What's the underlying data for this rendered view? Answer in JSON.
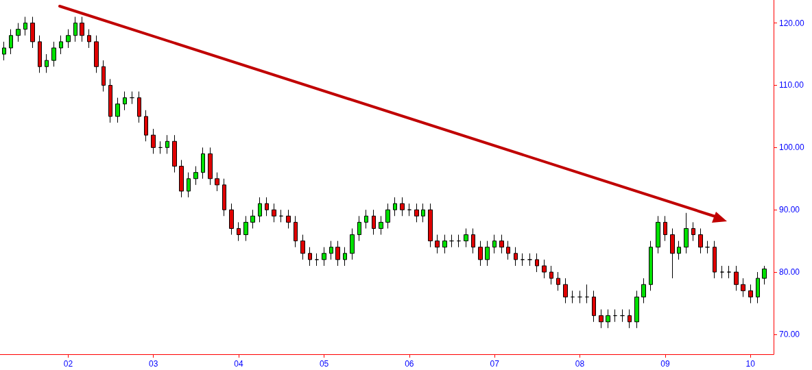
{
  "chart_data": {
    "type": "candlestick",
    "x": [
      "2001-04",
      "2001-05",
      "2001-06",
      "2001-07",
      "2001-08",
      "2001-09",
      "2001-10",
      "2001-11",
      "2001-12",
      "2002-01",
      "2002-02",
      "2002-03",
      "2002-04",
      "2002-05",
      "2002-06",
      "2002-07",
      "2002-08",
      "2002-09",
      "2002-10",
      "2002-11",
      "2002-12",
      "2003-01",
      "2003-02",
      "2003-03",
      "2003-04",
      "2003-05",
      "2003-06",
      "2003-07",
      "2003-08",
      "2003-09",
      "2003-10",
      "2003-11",
      "2003-12",
      "2004-01",
      "2004-02",
      "2004-03",
      "2004-04",
      "2004-05",
      "2004-06",
      "2004-07",
      "2004-08",
      "2004-09",
      "2004-10",
      "2004-11",
      "2004-12",
      "2005-01",
      "2005-02",
      "2005-03",
      "2005-04",
      "2005-05",
      "2005-06",
      "2005-07",
      "2005-08",
      "2005-09",
      "2005-10",
      "2005-11",
      "2005-12",
      "2006-01",
      "2006-02",
      "2006-03",
      "2006-04",
      "2006-05",
      "2006-06",
      "2006-07",
      "2006-08",
      "2006-09",
      "2006-10",
      "2006-11",
      "2006-12",
      "2007-01",
      "2007-02",
      "2007-03",
      "2007-04",
      "2007-05",
      "2007-06",
      "2007-07",
      "2007-08",
      "2007-09",
      "2007-10",
      "2007-11",
      "2007-12",
      "2008-01",
      "2008-02",
      "2008-03",
      "2008-04",
      "2008-05",
      "2008-06",
      "2008-07",
      "2008-08",
      "2008-09",
      "2008-10",
      "2008-11",
      "2008-12",
      "2009-01",
      "2009-02",
      "2009-03",
      "2009-04",
      "2009-05",
      "2009-06",
      "2009-07",
      "2009-08",
      "2009-09",
      "2009-10",
      "2009-11",
      "2009-12",
      "2010-01",
      "2010-02",
      "2010-03"
    ],
    "ohlc": [
      [
        115,
        117,
        114,
        116
      ],
      [
        116,
        119,
        115,
        118
      ],
      [
        118,
        120,
        117,
        119
      ],
      [
        119,
        121,
        118,
        120
      ],
      [
        120,
        121,
        116,
        117
      ],
      [
        117,
        118,
        112,
        113
      ],
      [
        113,
        115,
        112,
        114
      ],
      [
        114,
        117,
        113,
        116
      ],
      [
        116,
        118,
        115,
        117
      ],
      [
        117,
        119,
        116,
        118
      ],
      [
        118,
        121,
        117,
        120
      ],
      [
        120,
        121,
        117,
        118
      ],
      [
        118,
        119,
        116,
        117
      ],
      [
        117,
        118,
        112,
        113
      ],
      [
        113,
        114,
        109,
        110
      ],
      [
        110,
        111,
        104,
        105
      ],
      [
        105,
        108,
        104,
        107
      ],
      [
        107,
        109,
        106,
        108
      ],
      [
        108,
        109,
        107,
        108
      ],
      [
        108,
        109,
        104,
        105
      ],
      [
        105,
        106,
        101,
        102
      ],
      [
        102,
        103,
        99,
        100
      ],
      [
        100,
        101,
        99,
        100
      ],
      [
        100,
        102,
        99,
        101
      ],
      [
        101,
        102,
        96,
        97
      ],
      [
        97,
        98,
        92,
        93
      ],
      [
        93,
        96,
        92,
        95
      ],
      [
        95,
        97,
        94,
        96
      ],
      [
        96,
        100,
        95,
        99
      ],
      [
        99,
        100,
        94,
        95
      ],
      [
        95,
        96,
        93,
        94
      ],
      [
        94,
        95,
        89,
        90
      ],
      [
        90,
        91,
        86,
        87
      ],
      [
        87,
        88,
        85,
        86
      ],
      [
        86,
        89,
        85,
        88
      ],
      [
        88,
        90,
        87,
        89
      ],
      [
        89,
        92,
        88,
        91
      ],
      [
        91,
        92,
        89,
        90
      ],
      [
        90,
        91,
        88,
        89
      ],
      [
        89,
        90,
        88,
        89
      ],
      [
        89,
        90,
        87,
        88
      ],
      [
        88,
        89,
        84,
        85
      ],
      [
        85,
        86,
        82,
        83
      ],
      [
        83,
        84,
        81,
        82
      ],
      [
        82,
        83,
        81,
        82
      ],
      [
        82,
        84,
        81,
        83
      ],
      [
        83,
        85,
        82,
        84
      ],
      [
        84,
        85,
        81,
        82
      ],
      [
        82,
        84,
        81,
        83
      ],
      [
        83,
        87,
        82,
        86
      ],
      [
        86,
        89,
        85,
        88
      ],
      [
        88,
        90,
        87,
        89
      ],
      [
        89,
        90,
        86,
        87
      ],
      [
        87,
        89,
        86,
        88
      ],
      [
        88,
        91,
        87,
        90
      ],
      [
        90,
        92,
        89,
        91
      ],
      [
        91,
        92,
        89,
        90
      ],
      [
        90,
        91,
        89,
        90
      ],
      [
        90,
        91,
        88,
        89
      ],
      [
        89,
        91,
        88,
        90
      ],
      [
        90,
        91,
        84,
        85
      ],
      [
        85,
        86,
        83,
        84
      ],
      [
        84,
        86,
        83,
        85
      ],
      [
        85,
        86,
        84,
        85
      ],
      [
        85,
        86,
        84,
        85
      ],
      [
        85,
        87,
        84,
        86
      ],
      [
        86,
        87,
        83,
        84
      ],
      [
        84,
        85,
        81,
        82
      ],
      [
        82,
        85,
        81,
        84
      ],
      [
        84,
        86,
        83,
        85
      ],
      [
        85,
        86,
        83,
        84
      ],
      [
        84,
        85,
        82,
        83
      ],
      [
        83,
        84,
        81,
        82
      ],
      [
        82,
        83,
        81,
        82
      ],
      [
        82,
        83,
        81,
        82
      ],
      [
        82,
        83,
        80,
        81
      ],
      [
        81,
        82,
        79,
        80
      ],
      [
        80,
        81,
        78,
        79
      ],
      [
        79,
        80,
        77,
        78
      ],
      [
        78,
        79,
        75,
        76
      ],
      [
        76,
        77,
        75,
        76
      ],
      [
        76,
        77,
        75,
        76
      ],
      [
        76,
        78,
        75,
        76
      ],
      [
        76,
        77,
        72,
        73
      ],
      [
        73,
        74,
        71,
        72
      ],
      [
        72,
        74,
        71,
        73
      ],
      [
        73,
        74,
        72,
        73
      ],
      [
        73,
        74,
        72,
        73
      ],
      [
        73,
        74,
        71,
        72
      ],
      [
        72,
        77,
        71,
        76
      ],
      [
        76,
        79,
        75,
        78
      ],
      [
        78,
        85,
        77,
        84
      ],
      [
        84,
        89,
        83,
        88
      ],
      [
        88,
        89,
        85,
        86
      ],
      [
        86,
        87,
        79,
        83
      ],
      [
        83,
        85,
        82,
        84
      ],
      [
        84,
        89.5,
        83,
        87
      ],
      [
        87,
        88,
        85,
        86
      ],
      [
        86,
        87,
        83,
        84
      ],
      [
        84,
        85,
        83,
        84
      ],
      [
        84,
        85,
        79,
        80
      ],
      [
        80,
        81,
        79,
        80
      ],
      [
        80,
        81,
        79,
        80
      ],
      [
        80,
        81,
        77,
        78
      ],
      [
        78,
        79,
        76,
        77
      ],
      [
        77,
        78,
        75,
        76
      ],
      [
        76,
        80,
        75,
        79
      ],
      [
        79,
        81,
        78,
        80.5
      ]
    ],
    "xlim": [
      "2001-03-15",
      "2010-04-10"
    ],
    "xticks": [
      {
        "value": "2002",
        "label": "02"
      },
      {
        "value": "2003",
        "label": "03"
      },
      {
        "value": "2004",
        "label": "04"
      },
      {
        "value": "2005",
        "label": "05"
      },
      {
        "value": "2006",
        "label": "06"
      },
      {
        "value": "2007",
        "label": "07"
      },
      {
        "value": "2008",
        "label": "08"
      },
      {
        "value": "2009",
        "label": "09"
      },
      {
        "value": "2010",
        "label": "10"
      }
    ],
    "ylim": [
      66.8,
      123.7
    ],
    "yticks": [
      {
        "value": 70,
        "label": "70.00"
      },
      {
        "value": 80,
        "label": "80.00"
      },
      {
        "value": 90,
        "label": "90.00"
      },
      {
        "value": 100,
        "label": "100.00"
      },
      {
        "value": 110,
        "label": "110.00"
      },
      {
        "value": 120,
        "label": "120.00"
      }
    ],
    "grid": false
  }
}
